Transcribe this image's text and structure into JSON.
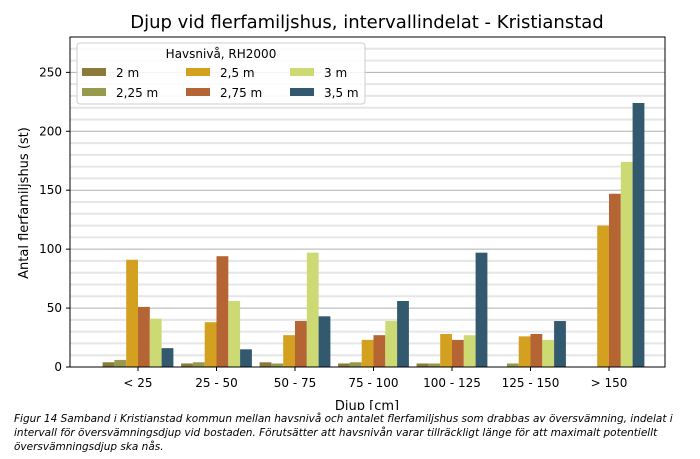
{
  "chart_data": {
    "type": "bar",
    "title": "Djup vid flerfamiljshus, intervallindelat - Kristianstad",
    "xlabel": "Djup [cm]",
    "ylabel": "Antal flerfamiljshus (st)",
    "ylim": [
      0,
      280
    ],
    "yticks": [
      0,
      50,
      100,
      150,
      200,
      250
    ],
    "grid": "major every 50, minor every 10",
    "legend_title": "Havsnivå, RH2000",
    "legend_placement": "top-left",
    "categories": [
      "< 25",
      "25 - 50",
      "50 - 75",
      "75 - 100",
      "100 - 125",
      "125 - 150",
      "> 150"
    ],
    "series": [
      {
        "name": "2 m",
        "color": "#8b7a3a",
        "values": [
          4,
          3,
          4,
          3,
          3,
          0,
          0
        ]
      },
      {
        "name": "2,25 m",
        "color": "#979a4c",
        "values": [
          6,
          4,
          3,
          4,
          3,
          3,
          0
        ]
      },
      {
        "name": "2,5 m",
        "color": "#d4a020",
        "values": [
          91,
          38,
          27,
          23,
          28,
          26,
          120
        ]
      },
      {
        "name": "2,75 m",
        "color": "#b56433",
        "values": [
          51,
          94,
          39,
          27,
          23,
          28,
          147
        ]
      },
      {
        "name": "3 m",
        "color": "#cdd973",
        "values": [
          41,
          56,
          97,
          39,
          27,
          23,
          174
        ]
      },
      {
        "name": "3,5 m",
        "color": "#33596e",
        "values": [
          16,
          15,
          43,
          56,
          97,
          39,
          224
        ]
      }
    ]
  },
  "caption": "Figur 14 Samband i Kristianstad kommun mellan havsnivå och antalet flerfamiljshus som drabbas av översvämning, indelat i intervall för översvämningsdjup vid bostaden. Förutsätter att havsnivån varar tillräckligt länge för att maximalt potentiellt översvämningsdjup ska nås."
}
